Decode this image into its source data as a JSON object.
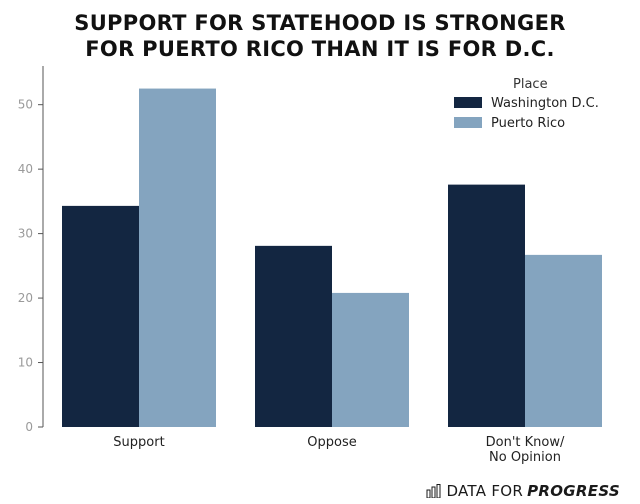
{
  "chart_data": {
    "type": "bar",
    "title_lines": [
      "SUPPORT FOR STATEHOOD IS STRONGER",
      "FOR PUERTO RICO THAN IT IS FOR D.C."
    ],
    "categories": [
      [
        "Support"
      ],
      [
        "Oppose"
      ],
      [
        "Don't Know/",
        "No Opinion"
      ]
    ],
    "series": [
      {
        "name": "Washington D.C.",
        "color": "#132641",
        "values": [
          34.3,
          28.1,
          37.6
        ]
      },
      {
        "name": "Puerto Rico",
        "color": "#84a4bf",
        "values": [
          52.5,
          20.8,
          26.7
        ]
      }
    ],
    "legend_title": "Place",
    "legend_position": "top-right",
    "ylim": [
      0,
      56
    ],
    "yticks": [
      0,
      10,
      20,
      30,
      40,
      50
    ],
    "xlabel": "",
    "ylabel": "",
    "grid": false
  },
  "brand": {
    "prefix": "DATA FOR",
    "emphasis": "PROGRESS",
    "icon": "bar-chart-logo-icon"
  }
}
